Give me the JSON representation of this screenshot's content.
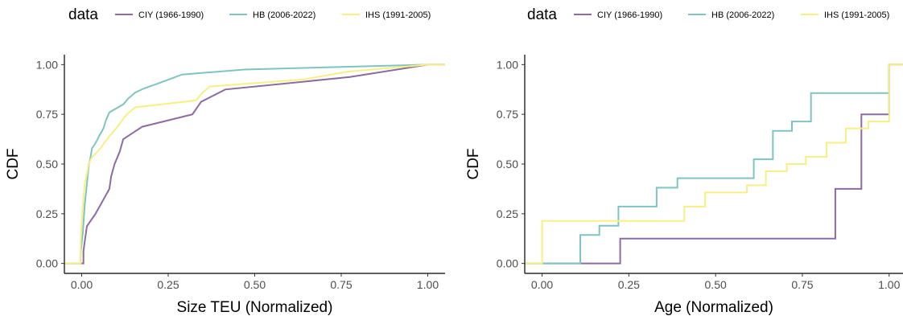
{
  "chart_data": [
    {
      "type": "line",
      "step": true,
      "xlabel": "Size TEU (Normalized)",
      "ylabel": "CDF",
      "xlim": [
        -0.05,
        1.05
      ],
      "ylim": [
        -0.05,
        1.05
      ],
      "xticks": [
        "0.00",
        "0.25",
        "0.50",
        "0.75",
        "1.00"
      ],
      "yticks": [
        "0.00",
        "0.25",
        "0.50",
        "0.75",
        "1.00"
      ],
      "xtick_values": [
        0,
        0.25,
        0.5,
        0.75,
        1.0
      ],
      "ytick_values": [
        0,
        0.25,
        0.5,
        0.75,
        1.0
      ],
      "grid": false,
      "legend": {
        "title": "data",
        "position": "top"
      },
      "series": [
        {
          "name": "CIY (1966-1990)",
          "color": "#8c6ba1",
          "points": [
            [
              -0.05,
              0
            ],
            [
              0.005,
              0
            ],
            [
              0.005,
              0.0625
            ],
            [
              0.01,
              0.125
            ],
            [
              0.015,
              0.1875
            ],
            [
              0.04,
              0.25
            ],
            [
              0.06,
              0.3125
            ],
            [
              0.08,
              0.375
            ],
            [
              0.085,
              0.4375
            ],
            [
              0.095,
              0.5
            ],
            [
              0.11,
              0.5625
            ],
            [
              0.12,
              0.625
            ],
            [
              0.175,
              0.6875
            ],
            [
              0.32,
              0.75
            ],
            [
              0.345,
              0.8125
            ],
            [
              0.415,
              0.875
            ],
            [
              0.775,
              0.9375
            ],
            [
              1.0,
              1.0
            ],
            [
              1.05,
              1.0
            ]
          ]
        },
        {
          "name": "HB (2006-2022)",
          "color": "#7fc4c3",
          "points": [
            [
              -0.05,
              0
            ],
            [
              -0.003,
              0
            ],
            [
              -0.003,
              0.05
            ],
            [
              0.0,
              0.1
            ],
            [
              0.003,
              0.15
            ],
            [
              0.005,
              0.2
            ],
            [
              0.007,
              0.25
            ],
            [
              0.009,
              0.3
            ],
            [
              0.012,
              0.35
            ],
            [
              0.015,
              0.4
            ],
            [
              0.018,
              0.45
            ],
            [
              0.021,
              0.5
            ],
            [
              0.025,
              0.53
            ],
            [
              0.03,
              0.58
            ],
            [
              0.038,
              0.6
            ],
            [
              0.045,
              0.62
            ],
            [
              0.05,
              0.64
            ],
            [
              0.057,
              0.66
            ],
            [
              0.063,
              0.68
            ],
            [
              0.07,
              0.72
            ],
            [
              0.08,
              0.76
            ],
            [
              0.1,
              0.78
            ],
            [
              0.12,
              0.8
            ],
            [
              0.135,
              0.83
            ],
            [
              0.155,
              0.86
            ],
            [
              0.18,
              0.88
            ],
            [
              0.22,
              0.905
            ],
            [
              0.29,
              0.95
            ],
            [
              0.47,
              0.975
            ],
            [
              1.0,
              1.0
            ],
            [
              1.05,
              1.0
            ]
          ]
        },
        {
          "name": "IHS (1991-2005)",
          "color": "#f8ef84",
          "points": [
            [
              -0.05,
              0
            ],
            [
              -0.003,
              0
            ],
            [
              -0.003,
              0.1
            ],
            [
              0.0,
              0.2
            ],
            [
              0.003,
              0.28
            ],
            [
              0.006,
              0.35
            ],
            [
              0.009,
              0.4
            ],
            [
              0.015,
              0.45
            ],
            [
              0.02,
              0.5
            ],
            [
              0.03,
              0.535
            ],
            [
              0.05,
              0.57
            ],
            [
              0.08,
              0.64
            ],
            [
              0.1,
              0.68
            ],
            [
              0.13,
              0.75
            ],
            [
              0.155,
              0.785
            ],
            [
              0.33,
              0.82
            ],
            [
              0.35,
              0.86
            ],
            [
              0.37,
              0.89
            ],
            [
              0.64,
              0.925
            ],
            [
              0.77,
              0.965
            ],
            [
              1.0,
              1.0
            ],
            [
              1.05,
              1.0
            ]
          ]
        }
      ]
    },
    {
      "type": "line",
      "step": true,
      "xlabel": "Age (Normalized)",
      "ylabel": "CDF",
      "xlim": [
        -0.05,
        1.04
      ],
      "ylim": [
        -0.05,
        1.05
      ],
      "xticks": [
        "0.00",
        "0.25",
        "0.50",
        "0.75",
        "1.00"
      ],
      "yticks": [
        "0.00",
        "0.25",
        "0.50",
        "0.75",
        "1.00"
      ],
      "xtick_values": [
        0,
        0.25,
        0.5,
        0.75,
        1.0
      ],
      "ytick_values": [
        0,
        0.25,
        0.5,
        0.75,
        1.0
      ],
      "grid": false,
      "legend": {
        "title": "data",
        "position": "top"
      },
      "series": [
        {
          "name": "CIY (1966-1990)",
          "color": "#8c6ba1",
          "points": [
            [
              -0.05,
              0
            ],
            [
              0.225,
              0
            ],
            [
              0.225,
              0.125
            ],
            [
              0.845,
              0.125
            ],
            [
              0.845,
              0.375
            ],
            [
              0.92,
              0.375
            ],
            [
              0.92,
              0.75
            ],
            [
              1.0,
              0.75
            ],
            [
              1.0,
              1.0
            ],
            [
              1.04,
              1.0
            ]
          ]
        },
        {
          "name": "HB (2006-2022)",
          "color": "#7fc4c3",
          "points": [
            [
              -0.05,
              0
            ],
            [
              0.11,
              0
            ],
            [
              0.11,
              0.143
            ],
            [
              0.165,
              0.143
            ],
            [
              0.165,
              0.19
            ],
            [
              0.22,
              0.19
            ],
            [
              0.22,
              0.286
            ],
            [
              0.33,
              0.286
            ],
            [
              0.33,
              0.381
            ],
            [
              0.39,
              0.381
            ],
            [
              0.39,
              0.429
            ],
            [
              0.61,
              0.429
            ],
            [
              0.61,
              0.524
            ],
            [
              0.665,
              0.524
            ],
            [
              0.665,
              0.667
            ],
            [
              0.72,
              0.667
            ],
            [
              0.72,
              0.714
            ],
            [
              0.775,
              0.714
            ],
            [
              0.775,
              0.857
            ],
            [
              1.0,
              0.857
            ],
            [
              1.0,
              1.0
            ],
            [
              1.04,
              1.0
            ]
          ]
        },
        {
          "name": "IHS (1991-2005)",
          "color": "#f8ef84",
          "points": [
            [
              -0.05,
              0
            ],
            [
              0.0,
              0
            ],
            [
              0.0,
              0.214
            ],
            [
              0.41,
              0.214
            ],
            [
              0.41,
              0.286
            ],
            [
              0.47,
              0.286
            ],
            [
              0.47,
              0.357
            ],
            [
              0.59,
              0.357
            ],
            [
              0.59,
              0.393
            ],
            [
              0.645,
              0.393
            ],
            [
              0.645,
              0.464
            ],
            [
              0.705,
              0.464
            ],
            [
              0.705,
              0.5
            ],
            [
              0.76,
              0.5
            ],
            [
              0.76,
              0.536
            ],
            [
              0.82,
              0.536
            ],
            [
              0.82,
              0.607
            ],
            [
              0.875,
              0.607
            ],
            [
              0.875,
              0.679
            ],
            [
              0.94,
              0.679
            ],
            [
              0.94,
              0.714
            ],
            [
              1.0,
              0.714
            ],
            [
              1.0,
              1.0
            ],
            [
              1.04,
              1.0
            ]
          ]
        }
      ]
    }
  ]
}
